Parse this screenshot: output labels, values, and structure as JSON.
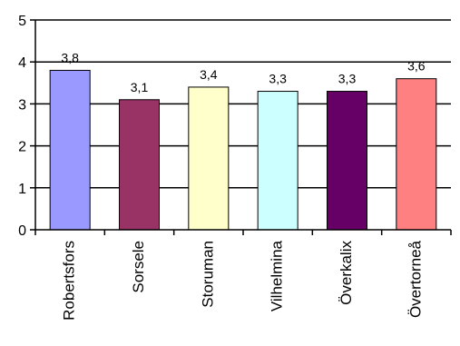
{
  "chart_data": {
    "type": "bar",
    "categories": [
      "Robertsfors",
      "Sorsele",
      "Storuman",
      "Vilhelmina",
      "Överkalix",
      "Övertorneå"
    ],
    "values": [
      3.8,
      3.1,
      3.4,
      3.3,
      3.3,
      3.6
    ],
    "data_labels": [
      "3,8",
      "3,1",
      "3,4",
      "3,3",
      "3,3",
      "3,6"
    ],
    "bar_colors": [
      "#9999ff",
      "#993366",
      "#ffffcc",
      "#ccffff",
      "#660066",
      "#ff8080"
    ],
    "y_ticks": [
      0,
      1,
      2,
      3,
      4,
      5
    ],
    "y_tick_labels": [
      "0",
      "1",
      "2",
      "3",
      "4",
      "5"
    ],
    "ylim": [
      0,
      5
    ],
    "grid": true,
    "legend": false,
    "title": "",
    "xlabel": "",
    "ylabel": ""
  }
}
